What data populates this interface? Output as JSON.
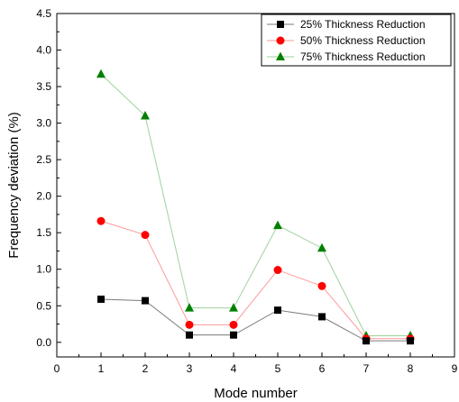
{
  "chart_data": {
    "type": "line",
    "xlabel": "Mode number",
    "ylabel": "Frequency deviation (%)",
    "xlim": [
      0,
      9
    ],
    "ylim": [
      -0.2,
      4.5
    ],
    "xticks": [
      0,
      1,
      2,
      3,
      4,
      5,
      6,
      7,
      8,
      9
    ],
    "yticks": [
      0.0,
      0.5,
      1.0,
      1.5,
      2.0,
      2.5,
      3.0,
      3.5,
      4.0,
      4.5
    ],
    "ytick_labels": [
      "0.0",
      "0.5",
      "1.0",
      "1.5",
      "2.0",
      "2.5",
      "3.0",
      "3.5",
      "4.0",
      "4.5"
    ],
    "x": [
      1,
      2,
      3,
      4,
      5,
      6,
      7,
      8
    ],
    "grid": false,
    "legend_position": "top-right",
    "series": [
      {
        "name": "25% Thickness Reduction",
        "marker": "square",
        "color": "#000000",
        "line_color": "#7a7a7a",
        "values": [
          0.59,
          0.57,
          0.1,
          0.1,
          0.44,
          0.35,
          0.02,
          0.02
        ]
      },
      {
        "name": "50% Thickness Reduction",
        "marker": "circle",
        "color": "#ff0000",
        "line_color": "#ff9a9a",
        "values": [
          1.66,
          1.47,
          0.24,
          0.24,
          0.99,
          0.77,
          0.05,
          0.05
        ]
      },
      {
        "name": "75% Thickness Reduction",
        "marker": "triangle",
        "color": "#008000",
        "line_color": "#9ed29e",
        "values": [
          3.67,
          3.1,
          0.47,
          0.47,
          1.6,
          1.29,
          0.09,
          0.09
        ]
      }
    ]
  }
}
